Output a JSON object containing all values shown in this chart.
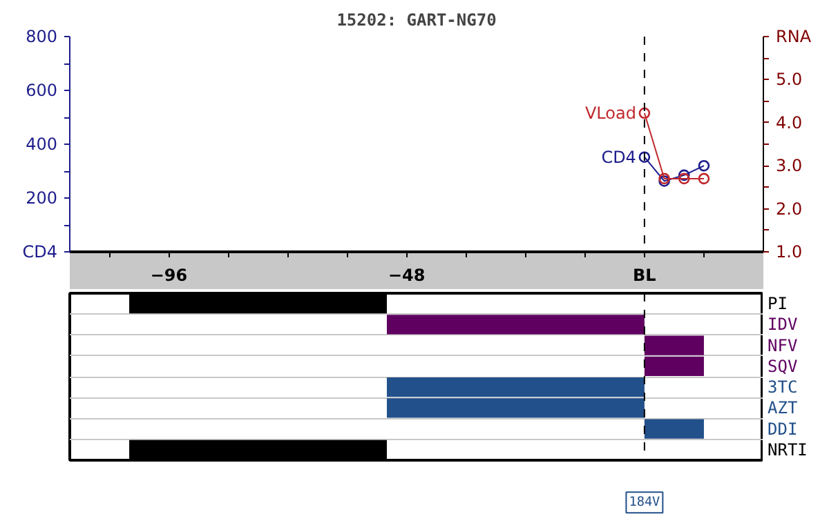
{
  "chart_data": [
    {
      "type": "line",
      "title": "15202: GART-NG70",
      "x": [
        0,
        4,
        8,
        12
      ],
      "marker": "circle",
      "line_style": "solid",
      "grid": false,
      "legend": false,
      "series": [
        {
          "name": "CD4",
          "color": "#1c1c8c",
          "values": [
            352,
            263,
            285,
            320
          ]
        },
        {
          "name": "VLoad",
          "color": "#c0282d",
          "values": [
            4.22,
            2.7,
            2.7,
            2.7
          ],
          "axis": "y2"
        }
      ],
      "xlim": [
        -116,
        24
      ],
      "xticks": [
        {
          "value": -108,
          "label": null
        },
        -96,
        {
          "value": -84,
          "label": null
        },
        {
          "value": -72,
          "label": null
        },
        {
          "value": -60,
          "label": null
        },
        -48,
        {
          "value": -36,
          "label": null
        },
        {
          "value": -24,
          "label": null
        },
        {
          "value": -12,
          "label": null
        },
        {
          "value": 0,
          "label": "BL"
        },
        {
          "value": 12,
          "label": null
        }
      ],
      "ylim": [
        0,
        800
      ],
      "yticks": [
        {
          "value": 0,
          "label": "CD4"
        },
        {
          "value": 100,
          "label": null
        },
        200,
        {
          "value": 300,
          "label": null
        },
        400,
        {
          "value": 500,
          "label": null
        },
        600,
        {
          "value": 700,
          "label": null
        },
        800
      ],
      "y2lim": [
        1,
        6
      ],
      "y2ticks": [
        {
          "value": 1,
          "label": "1.0"
        },
        {
          "value": 1.5,
          "label": null
        },
        {
          "value": 2,
          "label": "2.0"
        },
        {
          "value": 2.5,
          "label": null
        },
        {
          "value": 3,
          "label": "3.0"
        },
        {
          "value": 3.5,
          "label": null
        },
        {
          "value": 4,
          "label": "4.0"
        },
        {
          "value": 4.5,
          "label": null
        },
        {
          "value": 5,
          "label": "5.0"
        },
        {
          "value": 5.5,
          "label": null
        },
        {
          "value": 6,
          "label": "RNA"
        }
      ],
      "ref_lines": [
        {
          "axis": "x",
          "value": 0,
          "label": null,
          "color": "#000000",
          "line_style": "dashed"
        }
      ]
    },
    {
      "type": "bar",
      "orientation": "horizontal",
      "categories": [
        "PI",
        "IDV",
        "NFV",
        "SQV",
        "3TC",
        "AZT",
        "DDI",
        "NRTI"
      ],
      "base": [
        -104,
        -52,
        0,
        0,
        -52,
        -52,
        0,
        -104
      ],
      "values": [
        52,
        52,
        12,
        12,
        52,
        52,
        12,
        52
      ],
      "colors": [
        "#000000",
        "#5f0060",
        "#5f0060",
        "#5f0060",
        "#22508a",
        "#22508a",
        "#22508a",
        "#000000"
      ],
      "xlim": [
        -116,
        24
      ],
      "tick_labels": "y",
      "grid": "y",
      "ref_lines": [
        {
          "axis": "x",
          "value": 0,
          "label": null,
          "color": "#000000",
          "line_style": "dashed"
        }
      ],
      "annotations": [
        "184V"
      ]
    }
  ]
}
